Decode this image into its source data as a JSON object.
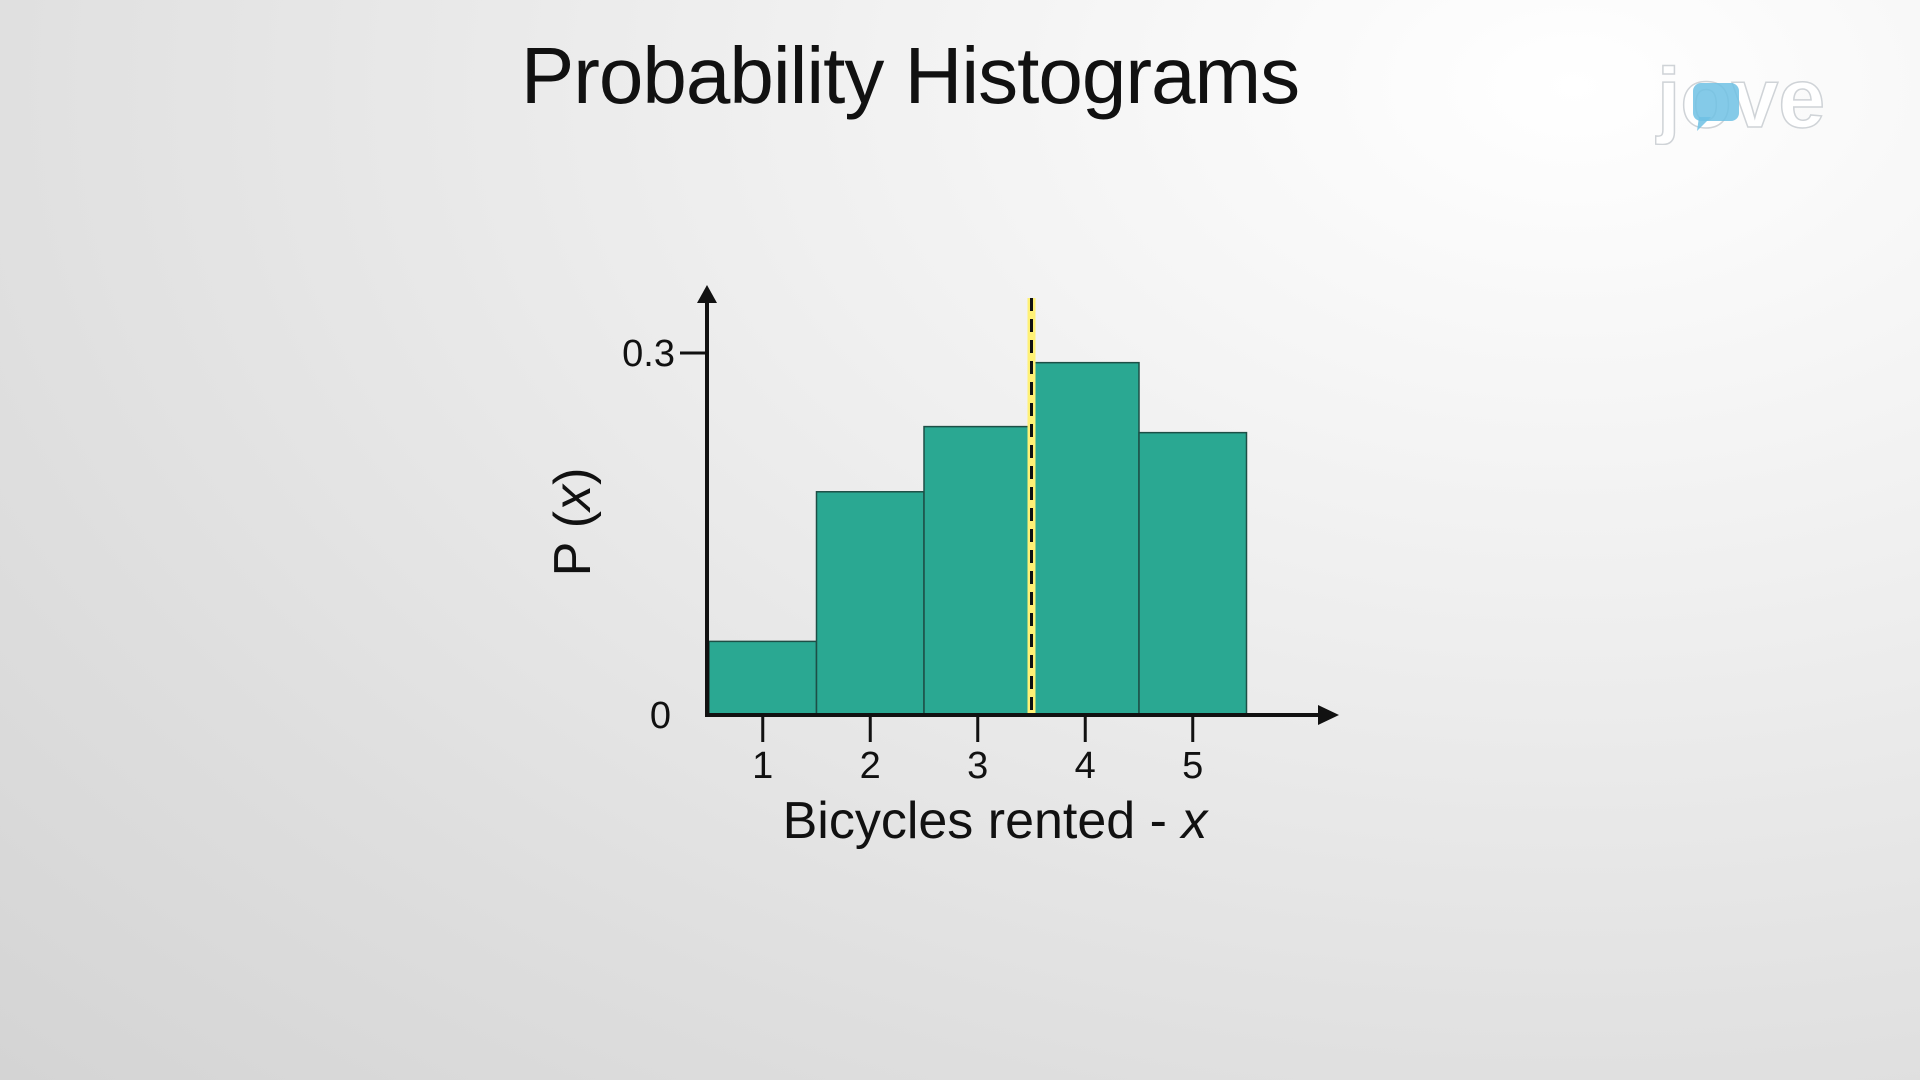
{
  "title": "Probability Histograms",
  "logo": {
    "text": "jove",
    "colors": {
      "accent": "#6ec1e4",
      "letters": "#ffffff"
    }
  },
  "colors": {
    "bar_fill": "#2aa892",
    "bar_stroke": "#1d4f46",
    "highlight": "#fff176",
    "axis": "#111111"
  },
  "chart_data": {
    "type": "bar",
    "categories": [
      "1",
      "2",
      "3",
      "4",
      "5"
    ],
    "values": [
      0.061,
      0.185,
      0.239,
      0.292,
      0.234
    ],
    "ylim": [
      0,
      0.3
    ],
    "y_ticks": [
      "0",
      "0.3"
    ],
    "xlabel": {
      "main": "Bicycles rented - ",
      "var": "x"
    },
    "ylabel": {
      "prefix": "P (",
      "var": "x",
      "suffix": ")"
    },
    "mean_line": {
      "x": 3.5,
      "style": "dashed",
      "highlighted": true
    },
    "grid": false
  }
}
